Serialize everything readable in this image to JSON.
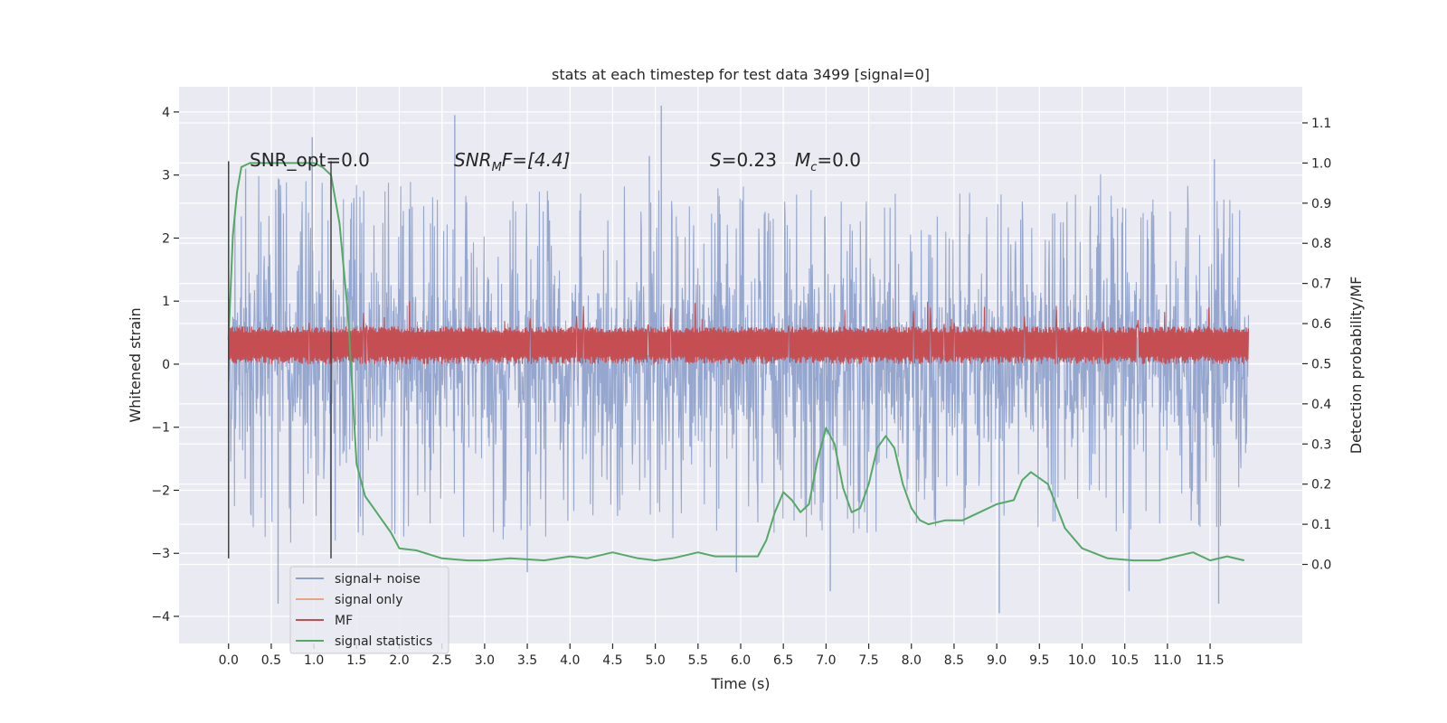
{
  "chart_data": {
    "type": "line",
    "title": "stats at each timestep for test data 3499 [signal=0]",
    "xlabel": "Time (s)",
    "ylabel_left": "Whitened strain",
    "ylabel_right": "Detection probability/MF",
    "x_range": [
      -0.58,
      12.58
    ],
    "y_left_range": [
      -4.43,
      4.4
    ],
    "y_right_range": [
      -0.197,
      1.19
    ],
    "x_ticks": [
      "0.0",
      "0.5",
      "1.0",
      "1.5",
      "2.0",
      "2.5",
      "3.0",
      "3.5",
      "4.0",
      "4.5",
      "5.0",
      "5.5",
      "6.0",
      "6.5",
      "7.0",
      "7.5",
      "8.0",
      "8.5",
      "9.0",
      "9.5",
      "10.0",
      "10.5",
      "11.0",
      "11.5"
    ],
    "y_left_ticks": [
      "4",
      "3",
      "2",
      "1",
      "0",
      "−1",
      "−2",
      "−3",
      "−4"
    ],
    "y_right_ticks": [
      "1.1",
      "1.0",
      "0.9",
      "0.8",
      "0.7",
      "0.6",
      "0.5",
      "0.4",
      "0.3",
      "0.2",
      "0.1",
      "0.0"
    ],
    "vertical_markers": [
      0.0,
      1.2
    ],
    "grid": true,
    "legend_position": "lower-left",
    "annotations": {
      "snr_opt": "SNR_opt=0.0",
      "snr_mf_base": "SNR",
      "snr_mf_sub": "M",
      "snr_mf_tail": "F=[4.4]",
      "s_label": "S",
      "s_value": "=0.23",
      "mc_label": "M",
      "mc_sub": "c",
      "mc_value": "=0.0"
    },
    "series": [
      {
        "name": "signal+ noise",
        "color": "#8da0cb",
        "x_start": 0.0,
        "x_end": 11.95,
        "typical_band": [
          -1.2,
          1.3
        ],
        "envelope_upper": [
          2.5,
          2.2
        ],
        "envelope_lower": [
          -2.4,
          -2.2
        ],
        "spikes": [
          [
            2.65,
            3.95
          ],
          [
            5.07,
            4.1
          ],
          [
            0.98,
            3.6
          ],
          [
            11.55,
            3.25
          ],
          [
            0.2,
            3.1
          ],
          [
            4.93,
            3.3
          ],
          [
            7.05,
            -3.6
          ],
          [
            9.03,
            -3.95
          ],
          [
            11.6,
            -3.8
          ],
          [
            0.58,
            -3.8
          ],
          [
            3.5,
            -3.3
          ],
          [
            5.95,
            -3.3
          ],
          [
            10.55,
            -3.6
          ]
        ]
      },
      {
        "name": "signal only",
        "color": "#e8a582",
        "values": []
      },
      {
        "name": "MF",
        "color": "#c44e52",
        "x_start": 0.0,
        "x_end": 11.95,
        "band": [
          0.0,
          0.6
        ],
        "peak": 1.0
      },
      {
        "name": "signal statistics",
        "color": "#55a868",
        "axis": "right",
        "x": [
          0.0,
          0.05,
          0.1,
          0.15,
          0.25,
          0.4,
          0.6,
          1.0,
          1.1,
          1.2,
          1.3,
          1.4,
          1.5,
          1.6,
          1.7,
          1.8,
          1.9,
          2.0,
          2.2,
          2.5,
          2.8,
          3.0,
          3.3,
          3.7,
          4.0,
          4.2,
          4.5,
          4.8,
          5.0,
          5.2,
          5.5,
          5.7,
          6.0,
          6.2,
          6.3,
          6.4,
          6.5,
          6.6,
          6.7,
          6.8,
          6.9,
          7.0,
          7.1,
          7.2,
          7.3,
          7.4,
          7.5,
          7.6,
          7.7,
          7.8,
          7.9,
          8.0,
          8.1,
          8.2,
          8.4,
          8.6,
          8.8,
          9.0,
          9.2,
          9.3,
          9.4,
          9.6,
          9.8,
          10.0,
          10.3,
          10.6,
          10.9,
          11.1,
          11.3,
          11.5,
          11.7,
          11.9
        ],
        "values": [
          0.56,
          0.82,
          0.93,
          0.99,
          1.0,
          1.0,
          1.0,
          1.0,
          0.99,
          0.97,
          0.85,
          0.62,
          0.25,
          0.17,
          0.14,
          0.11,
          0.08,
          0.04,
          0.035,
          0.015,
          0.01,
          0.01,
          0.015,
          0.01,
          0.02,
          0.015,
          0.03,
          0.015,
          0.01,
          0.015,
          0.03,
          0.02,
          0.02,
          0.02,
          0.06,
          0.13,
          0.18,
          0.16,
          0.13,
          0.15,
          0.26,
          0.34,
          0.3,
          0.19,
          0.13,
          0.14,
          0.2,
          0.29,
          0.32,
          0.29,
          0.2,
          0.14,
          0.11,
          0.1,
          0.11,
          0.11,
          0.13,
          0.15,
          0.16,
          0.21,
          0.23,
          0.2,
          0.09,
          0.04,
          0.015,
          0.01,
          0.01,
          0.02,
          0.03,
          0.01,
          0.02,
          0.01
        ]
      }
    ]
  }
}
